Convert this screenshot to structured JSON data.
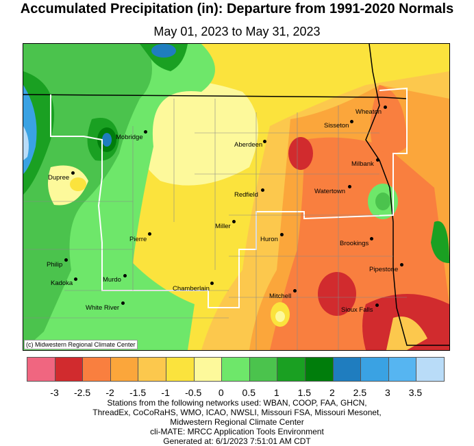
{
  "title": "Accumulated Precipitation (in): Departure from 1991-2020 Normals",
  "subtitle": "May 01, 2023 to May 31, 2023",
  "copyright": "(c) Midwestern Regional Climate Center",
  "cities": [
    {
      "name": "Wheaton"
    },
    {
      "name": "Sisseton"
    },
    {
      "name": "Mobridge"
    },
    {
      "name": "Aberdeen"
    },
    {
      "name": "Milbank"
    },
    {
      "name": "Dupree"
    },
    {
      "name": "Watertown"
    },
    {
      "name": "Redfield"
    },
    {
      "name": "Miller"
    },
    {
      "name": "Pierre"
    },
    {
      "name": "Huron"
    },
    {
      "name": "Brookings"
    },
    {
      "name": "Philip"
    },
    {
      "name": "Kadoka"
    },
    {
      "name": "Murdo"
    },
    {
      "name": "Pipestone"
    },
    {
      "name": "Chamberlain"
    },
    {
      "name": "Mitchell"
    },
    {
      "name": "White River"
    },
    {
      "name": "Sioux Falls"
    }
  ],
  "legend": {
    "colors": [
      "#f06680",
      "#d12b2e",
      "#f97f3f",
      "#fba63b",
      "#fcc84d",
      "#fbe33d",
      "#fdf99b",
      "#6ee76a",
      "#4bc34d",
      "#1aa022",
      "#007d0b",
      "#1f7dbf",
      "#3aa2e3",
      "#56b5f1",
      "#b9dcf8"
    ],
    "ticks": [
      "-3",
      "-2.5",
      "-2",
      "-1.5",
      "-1",
      "-0.5",
      "0",
      "0.5",
      "1",
      "1.5",
      "2",
      "2.5",
      "3",
      "3.5"
    ]
  },
  "footer": [
    "Stations from the following networks used: WBAN, COOP, FAA, GHCN,",
    "ThreadEx, CoCoRaHS, WMO, ICAO, NWSLI, Missouri FSA, Missouri Mesonet,",
    "Midwestern Regional Climate Center",
    "cli-MATE: MRCC Application Tools Environment",
    "Generated at: 6/1/2023 7:51:01 AM CDT"
  ]
}
